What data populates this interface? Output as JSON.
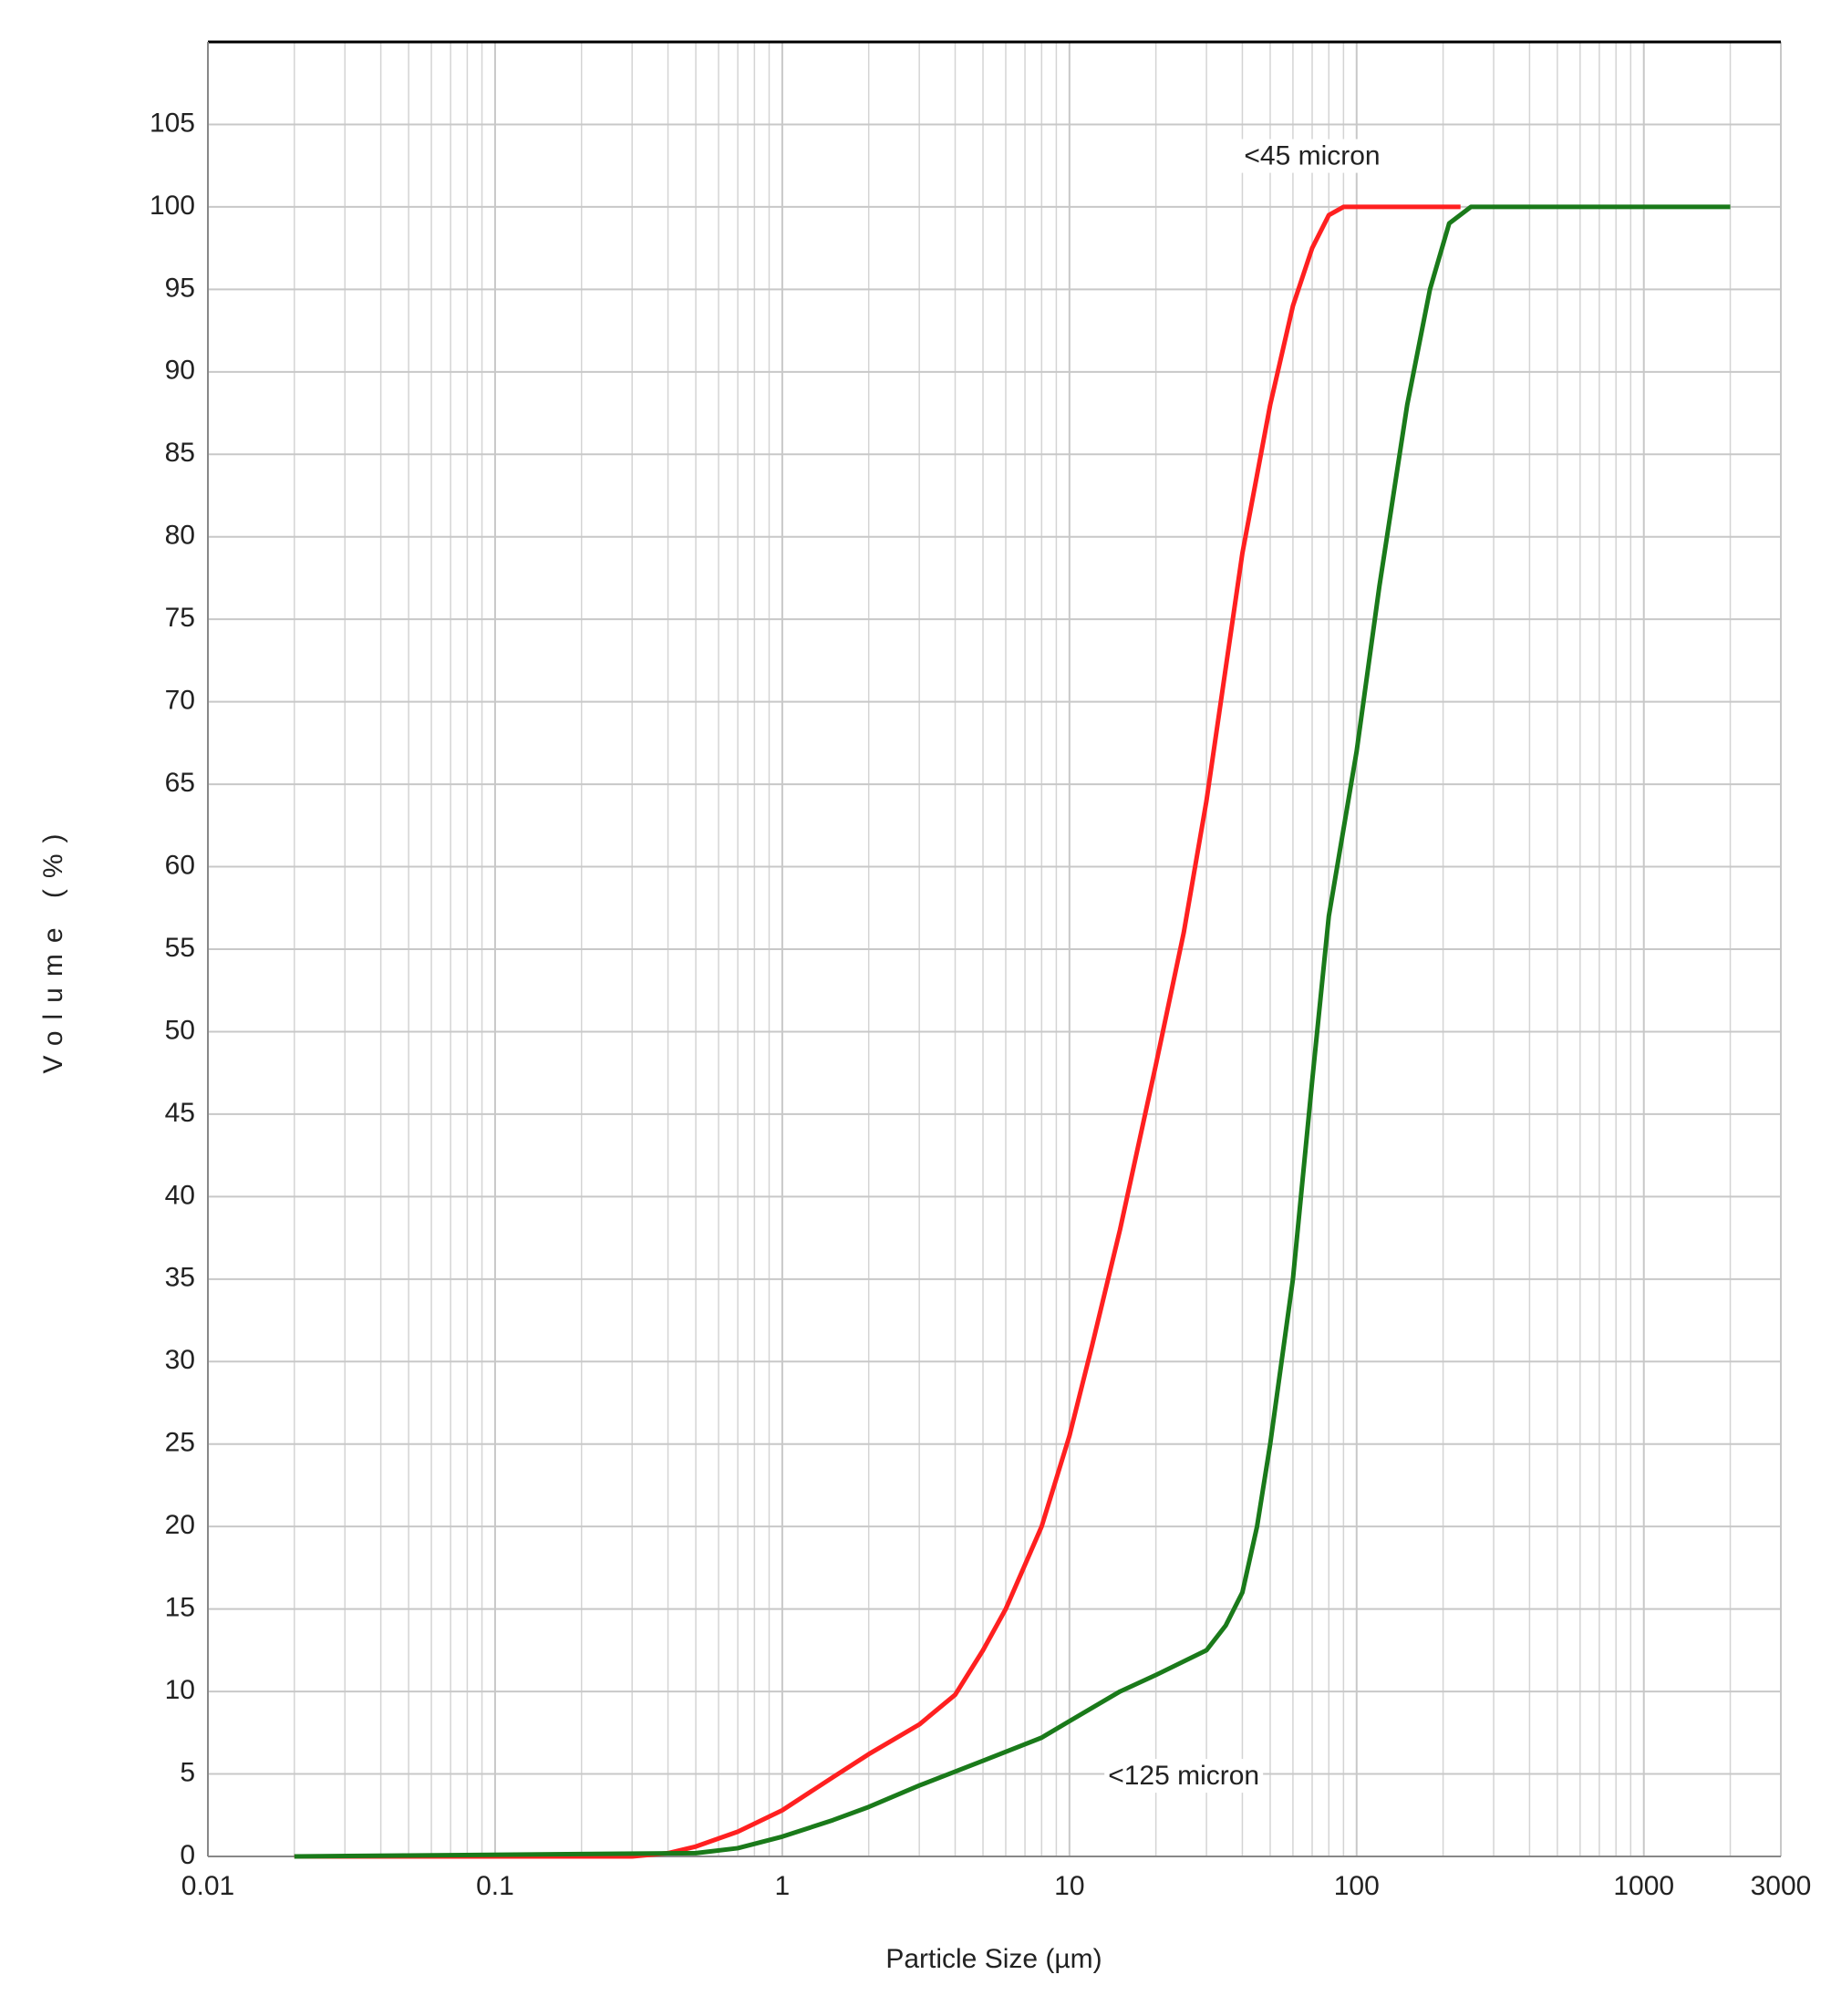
{
  "chart_data": {
    "type": "line",
    "xlabel": "Particle Size (µm)",
    "ylabel": "Volume (%)",
    "xscale": "log",
    "grid": true,
    "xlim": [
      0.01,
      3000
    ],
    "ylim": [
      0,
      110
    ],
    "xticks": [
      0.01,
      0.1,
      1,
      10,
      100,
      1000,
      3000
    ],
    "yticks": [
      0,
      5,
      10,
      15,
      20,
      25,
      30,
      35,
      40,
      45,
      50,
      55,
      60,
      65,
      70,
      75,
      80,
      85,
      90,
      95,
      100,
      105
    ],
    "series": [
      {
        "name": "<45 micron",
        "color": "#ff2020",
        "x": [
          0.02,
          0.3,
          0.4,
          0.5,
          0.7,
          1,
          1.5,
          2,
          3,
          4,
          5,
          6,
          8,
          10,
          12,
          15,
          20,
          25,
          30,
          40,
          50,
          60,
          70,
          80,
          90,
          230
        ],
        "values": [
          0,
          0,
          0.2,
          0.6,
          1.5,
          2.8,
          4.8,
          6.2,
          8,
          9.8,
          12.5,
          15,
          20,
          25.5,
          31,
          38,
          48,
          56,
          64,
          79,
          88,
          94,
          97.5,
          99.5,
          100,
          100
        ]
      },
      {
        "name": "<125 micron",
        "color": "#1a7a1a",
        "x": [
          0.02,
          0.5,
          0.7,
          1,
          1.5,
          2,
          3,
          5,
          8,
          10,
          15,
          20,
          30,
          35,
          40,
          45,
          50,
          60,
          70,
          80,
          100,
          120,
          150,
          180,
          210,
          250,
          2000
        ],
        "values": [
          0,
          0.2,
          0.5,
          1.2,
          2.2,
          3,
          4.3,
          5.8,
          7.2,
          8.2,
          10,
          11,
          12.5,
          14,
          16,
          20,
          25,
          35,
          47,
          57,
          67,
          77,
          88,
          95,
          99,
          100,
          100
        ]
      }
    ]
  }
}
